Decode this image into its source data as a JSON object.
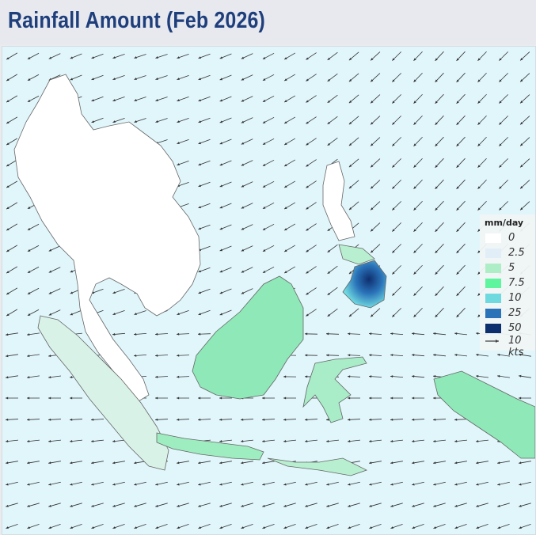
{
  "header": {
    "title": "Rainfall Amount  (Feb 2026)"
  },
  "legend": {
    "unit": "mm/day",
    "items": [
      {
        "label": "0",
        "color": "#ffffff"
      },
      {
        "label": "2.5",
        "color": "#e2eef7"
      },
      {
        "label": "5",
        "color": "#aeeec6"
      },
      {
        "label": "7.5",
        "color": "#5ff59e"
      },
      {
        "label": "10",
        "color": "#6fd9e0"
      },
      {
        "label": "25",
        "color": "#2a73b9"
      },
      {
        "label": "50",
        "color": "#0e2f6e"
      }
    ],
    "wind_reference": "10 kts"
  },
  "colors": {
    "ocean": "#e1f6fb",
    "title": "#1f3f7c",
    "border": "#666666",
    "arrow": "#333333"
  }
}
